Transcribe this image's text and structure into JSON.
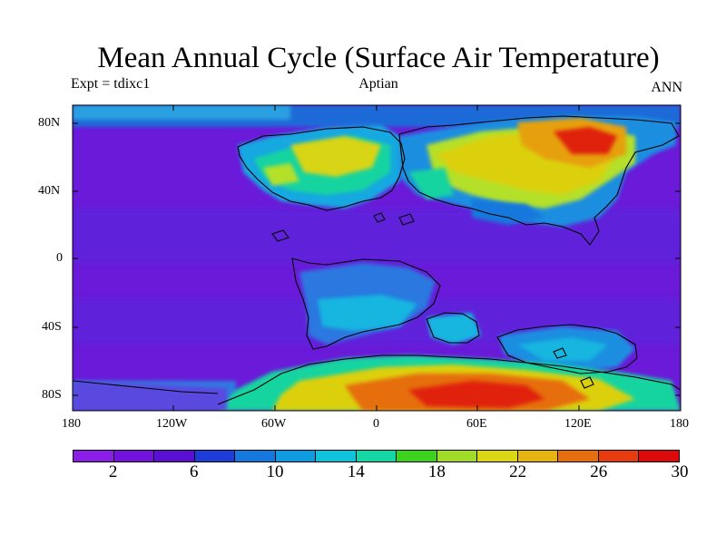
{
  "header": {
    "title": "Mean Annual Cycle (Surface Air Temperature)",
    "experiment": "Expt = tdixc1",
    "period": "Aptian",
    "season": "ANN"
  },
  "axes": {
    "lat_labels": [
      "80N",
      "40N",
      "0",
      "40S",
      "80S"
    ],
    "lon_labels": [
      "180",
      "120W",
      "60W",
      "0",
      "60E",
      "120E",
      "180"
    ]
  },
  "colorbar": {
    "colors": [
      "#8a1ee6",
      "#7212dc",
      "#5a0fd2",
      "#1e3cd7",
      "#1478dc",
      "#0f9be1",
      "#10c3dc",
      "#14d7a5",
      "#3cd21e",
      "#a0dc28",
      "#dcd714",
      "#e6b40f",
      "#e66e0f",
      "#e63c0f",
      "#dc0a0a"
    ],
    "labels": [
      "2",
      "6",
      "10",
      "14",
      "18",
      "22",
      "26",
      "30"
    ]
  },
  "map_colors": {
    "ocean": "#6a1ad8",
    "ocean_light": "#4a3adf",
    "land_cold": "#2d7ae0",
    "land_cool": "#12b6e0",
    "land_mild": "#16d4a0",
    "land_warm": "#b4e02a",
    "land_hot": "#dcd010",
    "land_hotter": "#e6a010",
    "land_hottest": "#e0200a",
    "coast": "#000000"
  }
}
